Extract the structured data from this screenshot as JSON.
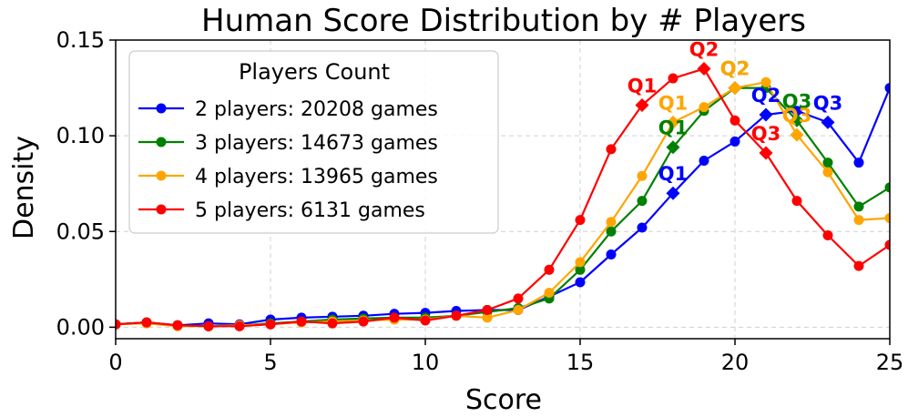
{
  "chart_data": {
    "type": "line",
    "title": "Human Score Distribution by # Players",
    "xlabel": "Score",
    "ylabel": "Density",
    "xlim": [
      0,
      25
    ],
    "ylim": [
      -0.006,
      0.15
    ],
    "xticks": [
      0,
      5,
      10,
      15,
      20,
      25
    ],
    "xtick_labels": [
      "0",
      "5",
      "10",
      "15",
      "20",
      "25"
    ],
    "yticks": [
      0.0,
      0.05,
      0.1,
      0.15
    ],
    "ytick_labels": [
      "0.00",
      "0.05",
      "0.10",
      "0.15"
    ],
    "grid": true,
    "legend": {
      "title": "Players Count",
      "placement": "top-left"
    },
    "x": [
      0,
      1,
      2,
      3,
      4,
      5,
      6,
      7,
      8,
      9,
      10,
      11,
      12,
      13,
      14,
      15,
      16,
      17,
      18,
      19,
      20,
      21,
      22,
      23,
      24,
      25
    ],
    "series": [
      {
        "name": "2 players: 20208 games",
        "color": "#0000ff",
        "values": [
          0.0015,
          0.0025,
          0.001,
          0.002,
          0.0015,
          0.004,
          0.005,
          0.0055,
          0.006,
          0.007,
          0.0075,
          0.0085,
          0.009,
          0.009,
          0.016,
          0.0235,
          0.038,
          0.052,
          0.07,
          0.087,
          0.097,
          0.111,
          0.113,
          0.107,
          0.086,
          0.125
        ],
        "quartiles": [
          {
            "label": "Q1",
            "x": 18,
            "y": 0.07
          },
          {
            "label": "Q2",
            "x": 21,
            "y": 0.111
          },
          {
            "label": "Q3",
            "x": 23,
            "y": 0.107
          }
        ]
      },
      {
        "name": "3 players: 14673 games",
        "color": "#008000",
        "values": [
          0.0015,
          0.0025,
          0.001,
          0.0005,
          0.001,
          0.002,
          0.003,
          0.004,
          0.0045,
          0.005,
          0.005,
          0.006,
          0.008,
          0.01,
          0.015,
          0.03,
          0.05,
          0.066,
          0.094,
          0.113,
          0.125,
          0.125,
          0.108,
          0.086,
          0.063,
          0.073
        ],
        "quartiles": [
          {
            "label": "Q1",
            "x": 18,
            "y": 0.094
          },
          {
            "label": "Q2",
            "x": 20,
            "y": 0.125
          },
          {
            "label": "Q3",
            "x": 22,
            "y": 0.108
          }
        ]
      },
      {
        "name": "4 players: 13965 games",
        "color": "#ffa500",
        "values": [
          0.0015,
          0.002,
          0.0005,
          0.0005,
          0.001,
          0.0015,
          0.0025,
          0.003,
          0.0035,
          0.004,
          0.004,
          0.006,
          0.005,
          0.009,
          0.018,
          0.034,
          0.055,
          0.079,
          0.107,
          0.115,
          0.125,
          0.128,
          0.1005,
          0.081,
          0.056,
          0.057
        ],
        "quartiles": [
          {
            "label": "Q1",
            "x": 18,
            "y": 0.107
          },
          {
            "label": "Q2",
            "x": 20,
            "y": 0.125
          },
          {
            "label": "Q3",
            "x": 22,
            "y": 0.1005
          }
        ]
      },
      {
        "name": "5 players: 6131 games",
        "color": "#ff0000",
        "values": [
          0.0015,
          0.0025,
          0.001,
          0.0005,
          0.0005,
          0.0015,
          0.003,
          0.002,
          0.003,
          0.005,
          0.0035,
          0.006,
          0.009,
          0.015,
          0.03,
          0.056,
          0.093,
          0.116,
          0.13,
          0.135,
          0.108,
          0.091,
          0.066,
          0.048,
          0.032,
          0.043
        ],
        "quartiles": [
          {
            "label": "Q1",
            "x": 17,
            "y": 0.116
          },
          {
            "label": "Q2",
            "x": 19,
            "y": 0.135
          },
          {
            "label": "Q3",
            "x": 21,
            "y": 0.091
          }
        ]
      }
    ]
  }
}
